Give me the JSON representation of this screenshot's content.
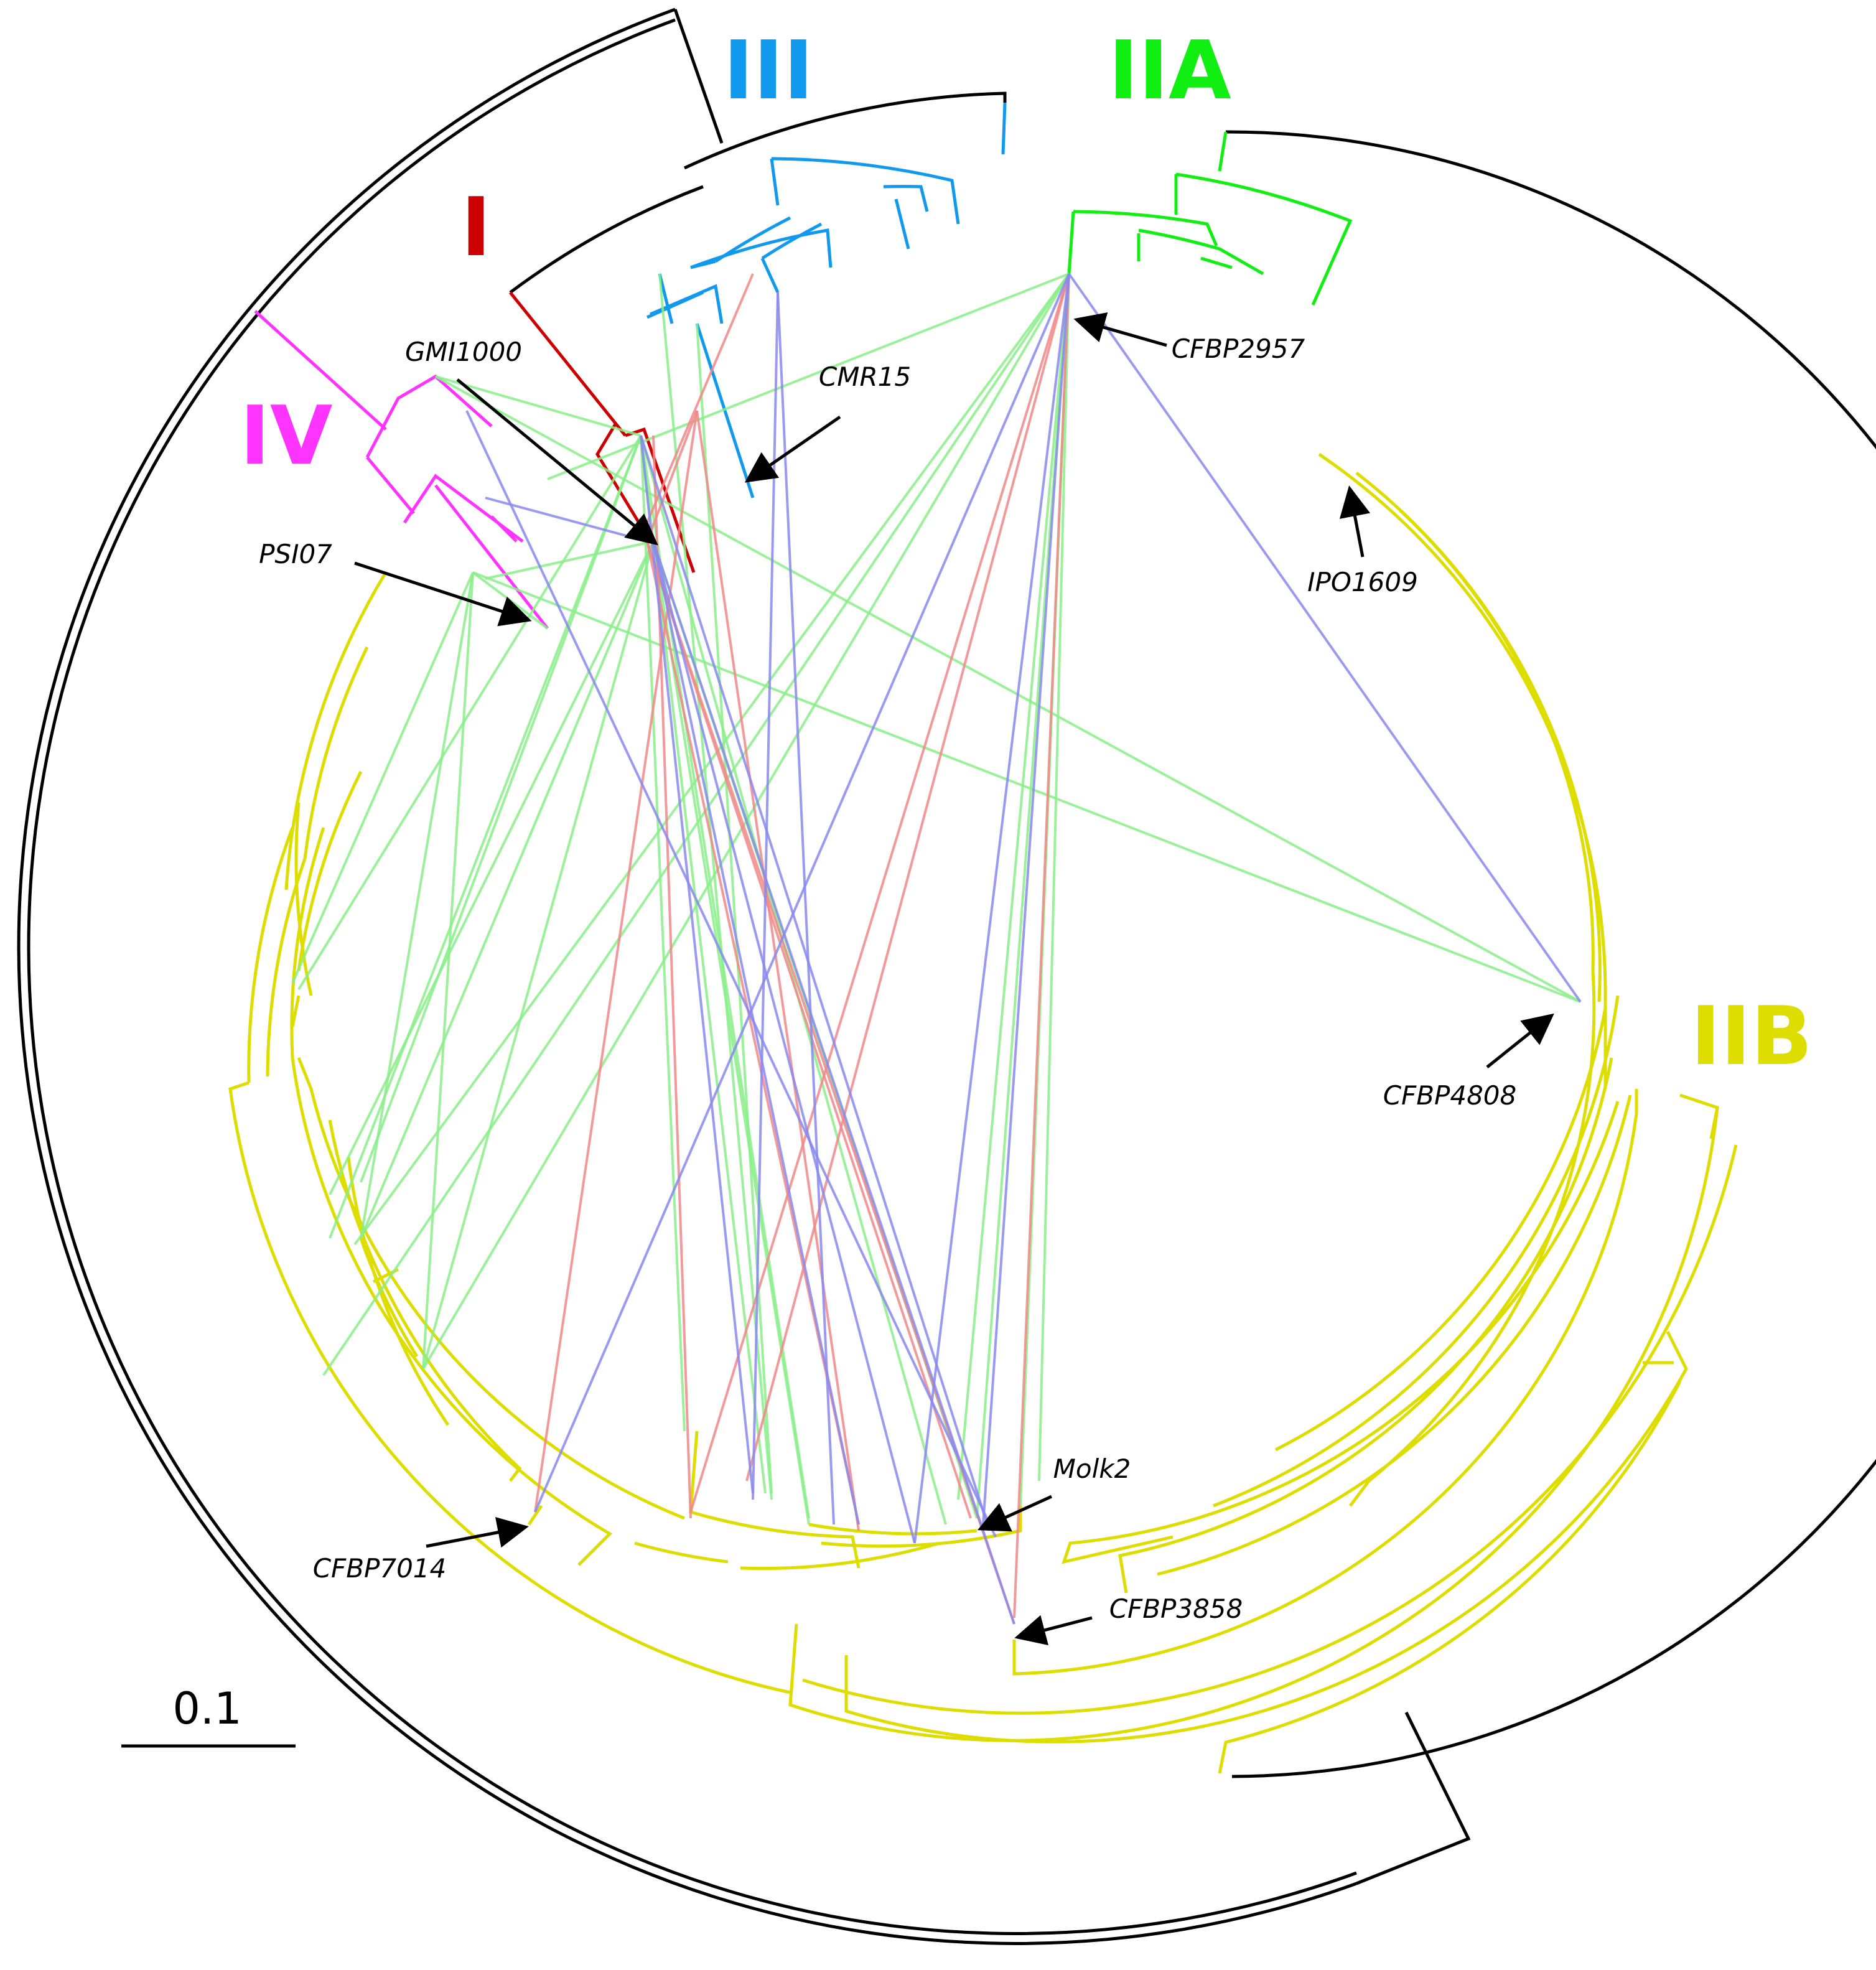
{
  "phylotypes": [
    {
      "id": "I",
      "label": "I",
      "color": "#cc0000"
    },
    {
      "id": "IIA",
      "label": "IIA",
      "color": "#11ee11"
    },
    {
      "id": "IIB",
      "label": "IIB",
      "color": "#dddd00"
    },
    {
      "id": "III",
      "label": "III",
      "color": "#1199ee"
    },
    {
      "id": "IV",
      "label": "IV",
      "color": "#ff33ff"
    }
  ],
  "strains": [
    {
      "id": "GMI1000",
      "label": "GMI1000"
    },
    {
      "id": "CMR15",
      "label": "CMR15"
    },
    {
      "id": "CFBP2957",
      "label": "CFBP2957"
    },
    {
      "id": "PSI07",
      "label": "PSI07"
    },
    {
      "id": "IPO1609",
      "label": "IPO1609"
    },
    {
      "id": "CFBP4808",
      "label": "CFBP4808"
    },
    {
      "id": "Molk2",
      "label": "Molk2"
    },
    {
      "id": "CFBP3858",
      "label": "CFBP3858"
    },
    {
      "id": "CFBP7014",
      "label": "CFBP7014"
    }
  ],
  "scale_bar": {
    "label": "0.1"
  },
  "link_colors": {
    "green": "#88ee88",
    "red": "#f08888",
    "blue": "#8888ee"
  },
  "tree_color": "#000000"
}
